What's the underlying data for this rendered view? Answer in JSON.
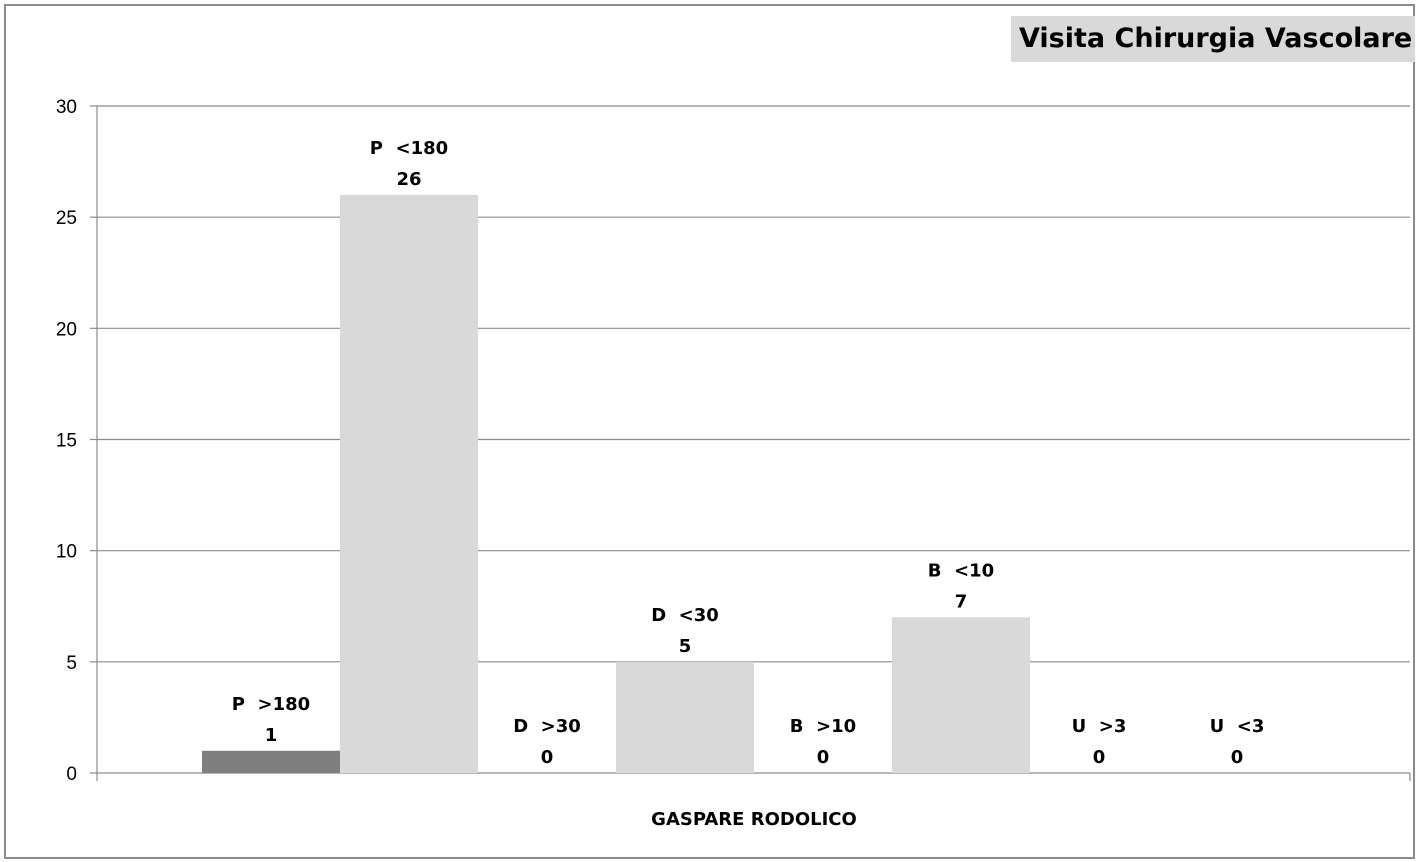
{
  "chart_data": {
    "type": "bar",
    "title": "Visita Chirurgia Vascolare",
    "xlabel": "GASPARE RODOLICO",
    "ylabel": "",
    "ylim": [
      0,
      30
    ],
    "yticks": [
      "0",
      "5",
      "10",
      "15",
      "20",
      "25",
      "30"
    ],
    "grid": true,
    "legend": "none",
    "bars": [
      {
        "label": "P  >180",
        "value": 1,
        "color": "#7f7f7f"
      },
      {
        "label": "P  <180",
        "value": 26,
        "color": "#d9d9d9"
      },
      {
        "label": "D  >30",
        "value": 0,
        "color": "#7f7f7f"
      },
      {
        "label": "D  <30",
        "value": 5,
        "color": "#d9d9d9"
      },
      {
        "label": "B  >10",
        "value": 0,
        "color": "#7f7f7f"
      },
      {
        "label": "B  <10",
        "value": 7,
        "color": "#d9d9d9"
      },
      {
        "label": "U  >3",
        "value": 0,
        "color": "#7f7f7f"
      },
      {
        "label": "U  <3",
        "value": 0,
        "color": "#d9d9d9"
      }
    ]
  }
}
